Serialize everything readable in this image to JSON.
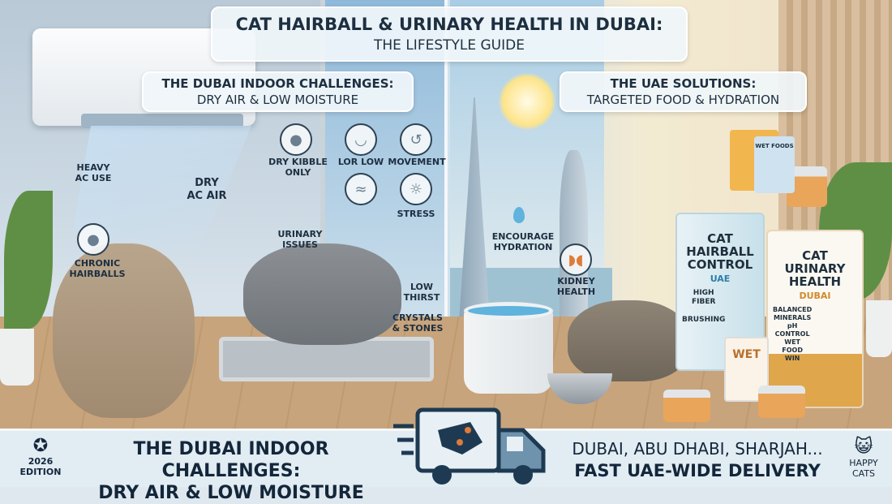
{
  "header": {
    "title": "CAT HAIRBALL & URINARY HEALTH IN DUBAI:",
    "subtitle": "THE LIFESTYLE GUIDE"
  },
  "left_panel": {
    "heading": "THE DUBAI INDOOR CHALLENGES:",
    "subheading": "DRY AIR & LOW MOISTURE",
    "labels": {
      "heavy_ac": "HEAVY\nAC USE",
      "dry_ac_air": "DRY\nAC AIR",
      "chronic_hairballs": "CHRONIC\nHAIRBALLS",
      "urinary_issues": "URINARY\nISSUES",
      "low_thirst": "LOW\nTHIRST",
      "crystals": "CRYSTALS\n& STONES"
    },
    "icons": [
      {
        "icon": "kibble-icon",
        "label": "DRY KIBBLE\nONLY"
      },
      {
        "icon": "food-bowl-icon",
        "label": "LOR LOW"
      },
      {
        "icon": "movement-icon",
        "label": "MOVEMENT"
      },
      {
        "icon": "cat-icon",
        "label": ""
      },
      {
        "icon": "stress-icon",
        "label": "STRESS"
      }
    ]
  },
  "right_panel": {
    "heading": "THE UAE SOLUTIONS:",
    "subheading": "TARGETED FOOD & HYDRATION",
    "labels": {
      "hydration": "ENCOURAGE\nHYDRATION",
      "kidney": "KIDNEY\nHEALTH",
      "wet_foods": "WET FOODS"
    },
    "bag_hairball": {
      "title": "CAT\nHAIRBALL\nCONTROL",
      "region": "UAE",
      "points": "HIGH\nFIBER\n\nBRUSHING"
    },
    "bag_urinary": {
      "title": "CAT\nURINARY\nHEALTH",
      "region": "DUBAI",
      "points": "BALANCED\nMINERALS\npH\nCONTROL\nWET\nFOOD\nWIN"
    },
    "pouch": "WET"
  },
  "banner": {
    "edition": "2026\nEDITION",
    "left_line1": "THE DUBAI INDOOR CHALLENGES:",
    "left_line2": "DRY AIR & LOW MOISTURE",
    "right_line1": "DUBAI, ABU DHABI, SHARJAH...",
    "right_line2": "FAST UAE-WIDE DELIVERY",
    "brand": "HAPPY\nCATS"
  },
  "colors": {
    "navy": "#13263a",
    "banner": "#e1ecf3",
    "orange": "#e07b39",
    "accent_blue": "#5fb3dc"
  }
}
